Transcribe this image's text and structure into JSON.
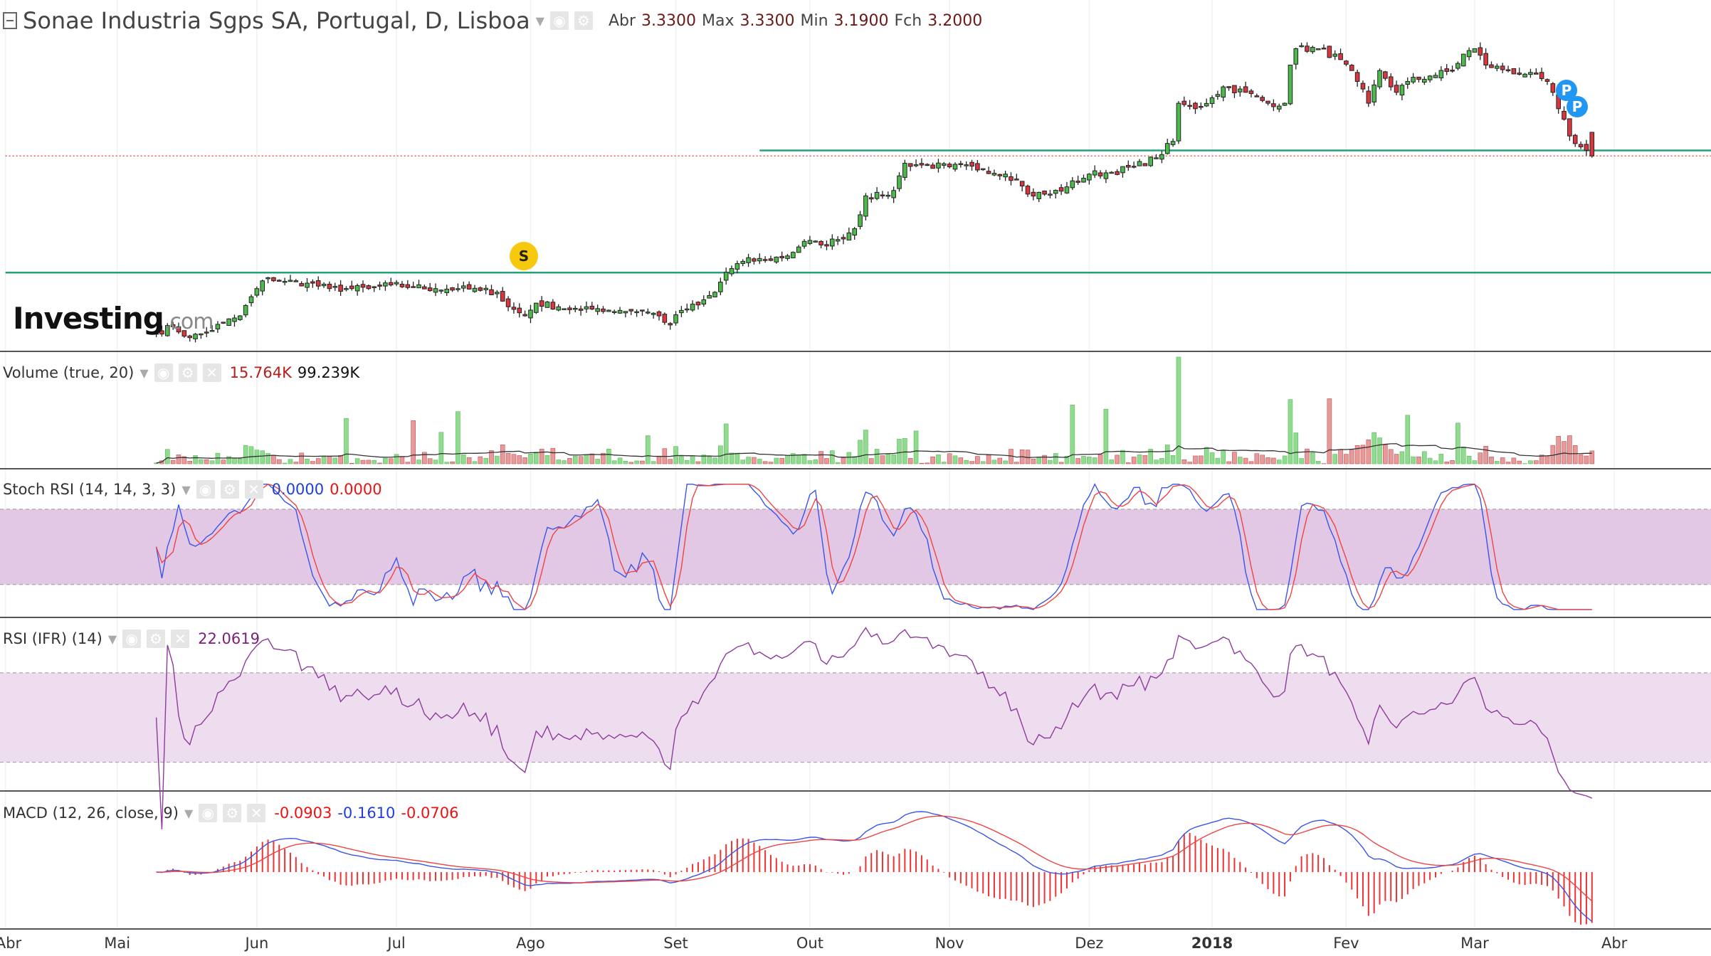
{
  "header": {
    "title": "Sonae Industria Sgps SA, Portugal, D, Lisboa",
    "ohlc": [
      {
        "label": "Abr",
        "value": "3.3300"
      },
      {
        "label": "Max",
        "value": "3.3300"
      },
      {
        "label": "Min",
        "value": "3.1900"
      },
      {
        "label": "Fch",
        "value": "3.2000"
      }
    ]
  },
  "logo": {
    "text": "Investing",
    "suffix": ".com"
  },
  "markers": {
    "s": "S",
    "p": "P"
  },
  "panes": {
    "volume": {
      "title": "Volume (true, 20)",
      "v1": "15.764K",
      "v2": "99.239K"
    },
    "stoch": {
      "title": "Stoch RSI (14, 14, 3, 3)",
      "v1": "0.0000",
      "v2": "0.0000"
    },
    "rsi": {
      "title": "RSI (IFR) (14)",
      "v1": "22.0619"
    },
    "macd": {
      "title": "MACD (12, 26, close, 9)",
      "v1": "-0.0903",
      "v2": "-0.1610",
      "v3": "-0.0706"
    }
  },
  "colors": {
    "up": "#4cbb4c",
    "down": "#d9363e",
    "line": "#26a17b",
    "k": "#3b55e6",
    "d": "#ef4444",
    "rsi": "#8e3a9e"
  },
  "chart_data": {
    "type": "candlestick",
    "title": "Sonae Industria Sgps SA, Portugal, D, Lisboa",
    "x_tick_labels": [
      {
        "label": "Abr",
        "day": 0
      },
      {
        "label": "Mai",
        "day": 20
      },
      {
        "label": "Jun",
        "day": 45
      },
      {
        "label": "Jul",
        "day": 70
      },
      {
        "label": "Ago",
        "day": 94
      },
      {
        "label": "Set",
        "day": 120
      },
      {
        "label": "Out",
        "day": 144
      },
      {
        "label": "Nov",
        "day": 169
      },
      {
        "label": "Dez",
        "day": 194
      },
      {
        "label": "2018",
        "day": 216,
        "bold": true
      },
      {
        "label": "Fev",
        "day": 240
      },
      {
        "label": "Mar",
        "day": 263
      },
      {
        "label": "Abr",
        "day": 288
      }
    ],
    "price_keypoints": [
      [
        27,
        2.23
      ],
      [
        30,
        2.26
      ],
      [
        33,
        2.2
      ],
      [
        36,
        2.23
      ],
      [
        39,
        2.28
      ],
      [
        42,
        2.32
      ],
      [
        45,
        2.47
      ],
      [
        47,
        2.53
      ],
      [
        50,
        2.51
      ],
      [
        54,
        2.5
      ],
      [
        58,
        2.47
      ],
      [
        62,
        2.47
      ],
      [
        65,
        2.47
      ],
      [
        69,
        2.49
      ],
      [
        73,
        2.48
      ],
      [
        77,
        2.47
      ],
      [
        81,
        2.47
      ],
      [
        85,
        2.46
      ],
      [
        88,
        2.45
      ],
      [
        90,
        2.37
      ],
      [
        93,
        2.32
      ],
      [
        95,
        2.39
      ],
      [
        99,
        2.37
      ],
      [
        103,
        2.35
      ],
      [
        106,
        2.36
      ],
      [
        110,
        2.35
      ],
      [
        114,
        2.35
      ],
      [
        117,
        2.32
      ],
      [
        119,
        2.27
      ],
      [
        121,
        2.35
      ],
      [
        124,
        2.38
      ],
      [
        127,
        2.45
      ],
      [
        129,
        2.56
      ],
      [
        132,
        2.62
      ],
      [
        136,
        2.63
      ],
      [
        140,
        2.65
      ],
      [
        143,
        2.73
      ],
      [
        146,
        2.71
      ],
      [
        149,
        2.74
      ],
      [
        152,
        2.8
      ],
      [
        154,
        2.98
      ],
      [
        157,
        2.98
      ],
      [
        159,
        3.01
      ],
      [
        161,
        3.16
      ],
      [
        164,
        3.15
      ],
      [
        169,
        3.14
      ],
      [
        175,
        3.13
      ],
      [
        179,
        3.1
      ],
      [
        181,
        3.07
      ],
      [
        183,
        2.99
      ],
      [
        187,
        2.99
      ],
      [
        190,
        3.03
      ],
      [
        194,
        3.1
      ],
      [
        198,
        3.11
      ],
      [
        202,
        3.14
      ],
      [
        206,
        3.19
      ],
      [
        209,
        3.28
      ],
      [
        210,
        3.49
      ],
      [
        213,
        3.46
      ],
      [
        216,
        3.52
      ],
      [
        218,
        3.58
      ],
      [
        222,
        3.55
      ],
      [
        226,
        3.49
      ],
      [
        229,
        3.49
      ],
      [
        230,
        3.7
      ],
      [
        231,
        3.79
      ],
      [
        235,
        3.79
      ],
      [
        239,
        3.73
      ],
      [
        242,
        3.61
      ],
      [
        244,
        3.49
      ],
      [
        246,
        3.67
      ],
      [
        249,
        3.55
      ],
      [
        251,
        3.61
      ],
      [
        255,
        3.64
      ],
      [
        259,
        3.67
      ],
      [
        261,
        3.76
      ],
      [
        263,
        3.79
      ],
      [
        265,
        3.7
      ],
      [
        269,
        3.67
      ],
      [
        272,
        3.65
      ],
      [
        276,
        3.61
      ],
      [
        278,
        3.46
      ],
      [
        280,
        3.31
      ],
      [
        282,
        3.25
      ],
      [
        284,
        3.2
      ]
    ],
    "last": {
      "open": 3.33,
      "high": 3.33,
      "low": 3.19,
      "close": 3.2
    },
    "horizontal_lines": [
      {
        "price": 3.23,
        "from_day": 135,
        "color": "#26a17b"
      },
      {
        "price": 2.558,
        "from_day": 0,
        "color": "#26a17b"
      },
      {
        "price": 3.2,
        "from_day": 0,
        "color": "#ef5350",
        "style": "dotted"
      }
    ],
    "events": [
      {
        "type": "S",
        "day": 93
      },
      {
        "type": "P",
        "day": 279
      },
      {
        "type": "P",
        "day": 281
      }
    ],
    "indicators": {
      "volume": {
        "ma_period": 20,
        "last": 15764,
        "ma_last": 99239
      },
      "stoch_rsi": {
        "params": [
          14,
          14,
          3,
          3
        ],
        "bands": [
          20,
          80
        ],
        "k_last": 0,
        "d_last": 0
      },
      "rsi": {
        "period": 14,
        "bands": [
          30,
          70
        ],
        "last": 22.0619
      },
      "macd": {
        "fast": 12,
        "slow": 26,
        "signal": 9,
        "hist_last": -0.0903,
        "macd_last": -0.161,
        "signal_last": -0.0706
      }
    }
  }
}
